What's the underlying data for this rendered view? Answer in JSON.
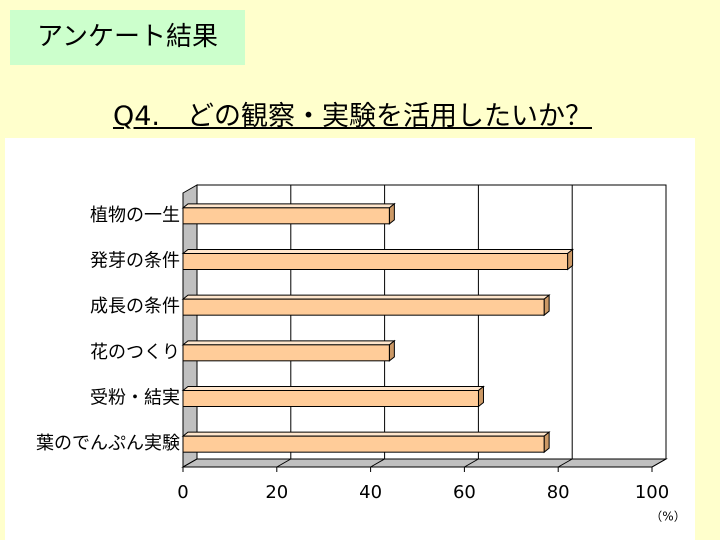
{
  "slide_label": "アンケート結果",
  "chart_data": {
    "type": "bar3d",
    "title": "Q4.　どの観察・実験を活用したいか？",
    "categories": [
      "植物の一生",
      "発芽の条件",
      "成長の条件",
      "花のつくり",
      "受粉・結実",
      "葉のでんぷん実験"
    ],
    "values": [
      44,
      82,
      77,
      44,
      63,
      77
    ],
    "color": "#ffcc99",
    "xlim": [
      0,
      100
    ],
    "xticks": [
      0,
      20,
      40,
      60,
      80,
      100
    ],
    "x_label": "（%）",
    "grid": true
  }
}
